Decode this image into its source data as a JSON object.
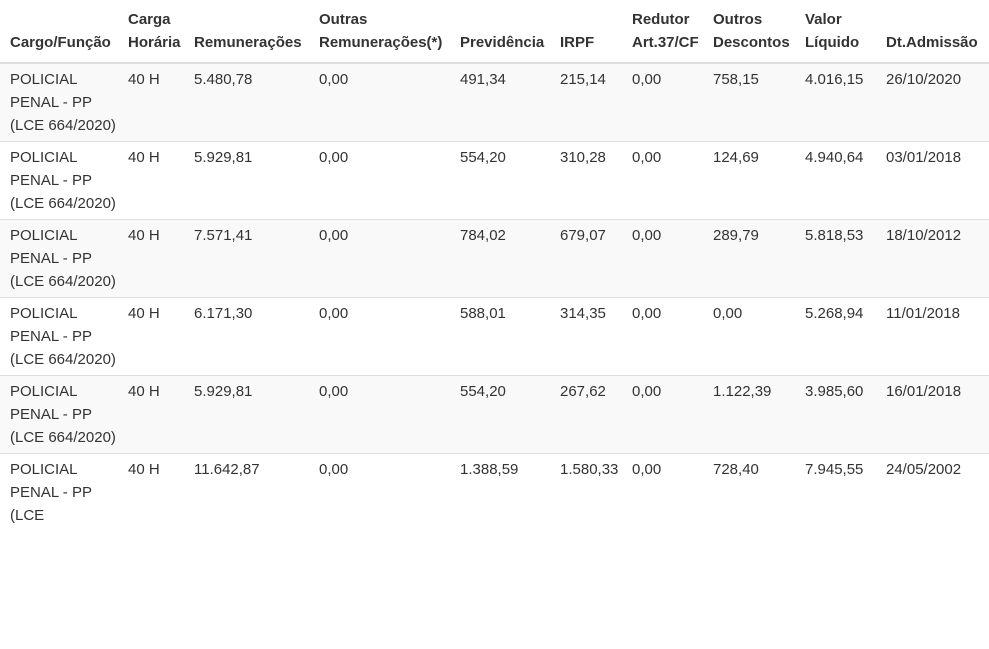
{
  "table": {
    "headers": {
      "cargo": [
        "Cargo/Função"
      ],
      "carga": [
        "Carga",
        "Horária"
      ],
      "remuneracoes": [
        "Remunerações"
      ],
      "outras": [
        "Outras",
        "Remunerações(*)"
      ],
      "previdencia": [
        "Previdência"
      ],
      "irpf": [
        "IRPF"
      ],
      "redutor": [
        "Redutor",
        "Art.37/CF"
      ],
      "descontos": [
        "Outros",
        "Descontos"
      ],
      "liquido": [
        "Valor",
        "Líquido"
      ],
      "admissao": [
        "Dt.Admissão"
      ]
    },
    "rows": [
      {
        "cut": "0",
        "cargo": "POLICIAL PENAL - PP (LCE 664/2020)",
        "carga": "40 H",
        "remuneracoes": "5.480,78",
        "outras": "0,00",
        "previdencia": "491,34",
        "irpf": "215,14",
        "redutor": "0,00",
        "descontos": "758,15",
        "liquido": "4.016,15",
        "admissao": "26/10/2020"
      },
      {
        "cut": "0",
        "cargo": "POLICIAL PENAL - PP (LCE 664/2020)",
        "carga": "40 H",
        "remuneracoes": "5.929,81",
        "outras": "0,00",
        "previdencia": "554,20",
        "irpf": "310,28",
        "redutor": "0,00",
        "descontos": "124,69",
        "liquido": "4.940,64",
        "admissao": "03/01/2018"
      },
      {
        "cut": "0",
        "cargo": "POLICIAL PENAL - PP (LCE 664/2020)",
        "carga": "40 H",
        "remuneracoes": "7.571,41",
        "outras": "0,00",
        "previdencia": "784,02",
        "irpf": "679,07",
        "redutor": "0,00",
        "descontos": "289,79",
        "liquido": "5.818,53",
        "admissao": "18/10/2012"
      },
      {
        "cut": "0",
        "cargo": "POLICIAL PENAL - PP (LCE 664/2020)",
        "carga": "40 H",
        "remuneracoes": "6.171,30",
        "outras": "0,00",
        "previdencia": "588,01",
        "irpf": "314,35",
        "redutor": "0,00",
        "descontos": "0,00",
        "liquido": "5.268,94",
        "admissao": "11/01/2018"
      },
      {
        "cut": "0",
        "cargo": "POLICIAL PENAL - PP (LCE 664/2020)",
        "carga": "40 H",
        "remuneracoes": "5.929,81",
        "outras": "0,00",
        "previdencia": "554,20",
        "irpf": "267,62",
        "redutor": "0,00",
        "descontos": "1.122,39",
        "liquido": "3.985,60",
        "admissao": "16/01/2018"
      },
      {
        "cut": "0",
        "cargo": "POLICIAL PENAL - PP (LCE",
        "carga": "40 H",
        "remuneracoes": "11.642,87",
        "outras": "0,00",
        "previdencia": "1.388,59",
        "irpf": "1.580,33",
        "redutor": "0,00",
        "descontos": "728,40",
        "liquido": "7.945,55",
        "admissao": "24/05/2002"
      }
    ]
  }
}
